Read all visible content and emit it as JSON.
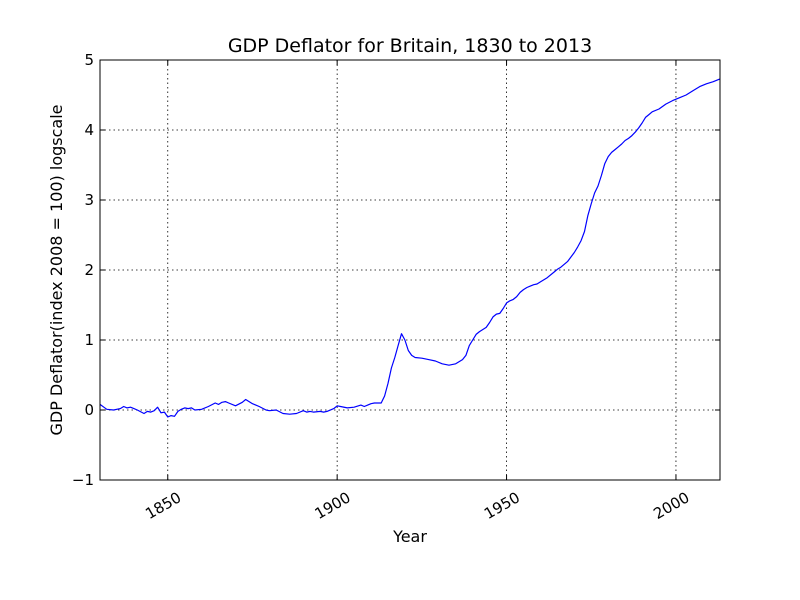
{
  "chart_data": {
    "type": "line",
    "title": "GDP Deflator for Britain, 1830 to 2013",
    "xlabel": "Year",
    "ylabel": "GDP Deflator(index 2008 = 100) logscale",
    "xlim": [
      1830,
      2013
    ],
    "ylim": [
      -1,
      5
    ],
    "x_ticks": [
      1850,
      1900,
      1950,
      2000
    ],
    "y_ticks": [
      -1,
      0,
      1,
      2,
      3,
      4,
      5
    ],
    "x_tick_labels": [
      "1850",
      "1900",
      "1950",
      "2000"
    ],
    "y_tick_labels": [
      "−1",
      "0",
      "1",
      "2",
      "3",
      "4",
      "5"
    ],
    "grid": true,
    "line_color": "#0000ff",
    "series": [
      {
        "x": [
          1830,
          1832,
          1834,
          1836,
          1837,
          1838,
          1839,
          1840,
          1841,
          1843,
          1844,
          1845,
          1846,
          1847,
          1848,
          1849,
          1850,
          1851,
          1852,
          1853,
          1854,
          1855,
          1856,
          1857,
          1858,
          1860,
          1862,
          1864,
          1865,
          1866,
          1867,
          1868,
          1870,
          1872,
          1873,
          1874,
          1875,
          1877,
          1879,
          1880,
          1882,
          1884,
          1886,
          1888,
          1890,
          1891,
          1892,
          1893,
          1895,
          1896,
          1897,
          1899,
          1900,
          1901,
          1903,
          1905,
          1907,
          1908,
          1909,
          1910,
          1911,
          1912,
          1913,
          1914,
          1915,
          1916,
          1917,
          1918,
          1919,
          1920,
          1921,
          1922,
          1923,
          1925,
          1927,
          1929,
          1931,
          1933,
          1935,
          1937,
          1938,
          1939,
          1940,
          1941,
          1942,
          1944,
          1945,
          1946,
          1947,
          1948,
          1949,
          1950,
          1951,
          1952,
          1953,
          1954,
          1955,
          1956,
          1957,
          1958,
          1959,
          1960,
          1962,
          1964,
          1965,
          1966,
          1968,
          1970,
          1971,
          1972,
          1973,
          1974,
          1975,
          1976,
          1977,
          1978,
          1979,
          1980,
          1981,
          1982,
          1983,
          1984,
          1985,
          1986,
          1987,
          1988,
          1989,
          1990,
          1991,
          1992,
          1993,
          1995,
          1997,
          1999,
          2001,
          2003,
          2005,
          2007,
          2009,
          2011,
          2013
        ],
        "y": [
          0.08,
          0.01,
          0.0,
          0.02,
          0.05,
          0.03,
          0.04,
          0.02,
          0.0,
          -0.05,
          -0.02,
          -0.03,
          -0.01,
          0.04,
          -0.04,
          -0.03,
          -0.1,
          -0.08,
          -0.09,
          -0.02,
          0.01,
          0.03,
          0.02,
          0.03,
          0.0,
          0.01,
          0.05,
          0.1,
          0.08,
          0.11,
          0.12,
          0.1,
          0.06,
          0.11,
          0.15,
          0.12,
          0.09,
          0.05,
          0.0,
          -0.01,
          0.0,
          -0.05,
          -0.06,
          -0.05,
          -0.01,
          -0.03,
          -0.02,
          -0.03,
          -0.02,
          -0.03,
          -0.02,
          0.02,
          0.06,
          0.05,
          0.03,
          0.04,
          0.07,
          0.05,
          0.07,
          0.09,
          0.1,
          0.1,
          0.1,
          0.2,
          0.38,
          0.6,
          0.75,
          0.92,
          1.09,
          1.0,
          0.85,
          0.78,
          0.75,
          0.74,
          0.72,
          0.7,
          0.66,
          0.64,
          0.66,
          0.72,
          0.78,
          0.92,
          1.0,
          1.08,
          1.12,
          1.18,
          1.25,
          1.33,
          1.37,
          1.38,
          1.45,
          1.53,
          1.56,
          1.58,
          1.62,
          1.68,
          1.72,
          1.75,
          1.77,
          1.79,
          1.8,
          1.83,
          1.89,
          1.97,
          2.01,
          2.04,
          2.12,
          2.25,
          2.33,
          2.42,
          2.55,
          2.78,
          2.95,
          3.1,
          3.2,
          3.35,
          3.52,
          3.62,
          3.68,
          3.72,
          3.76,
          3.8,
          3.85,
          3.88,
          3.92,
          3.97,
          4.03,
          4.1,
          4.18,
          4.22,
          4.26,
          4.3,
          4.37,
          4.42,
          4.46,
          4.5,
          4.56,
          4.62,
          4.66,
          4.69,
          4.73
        ]
      }
    ]
  }
}
